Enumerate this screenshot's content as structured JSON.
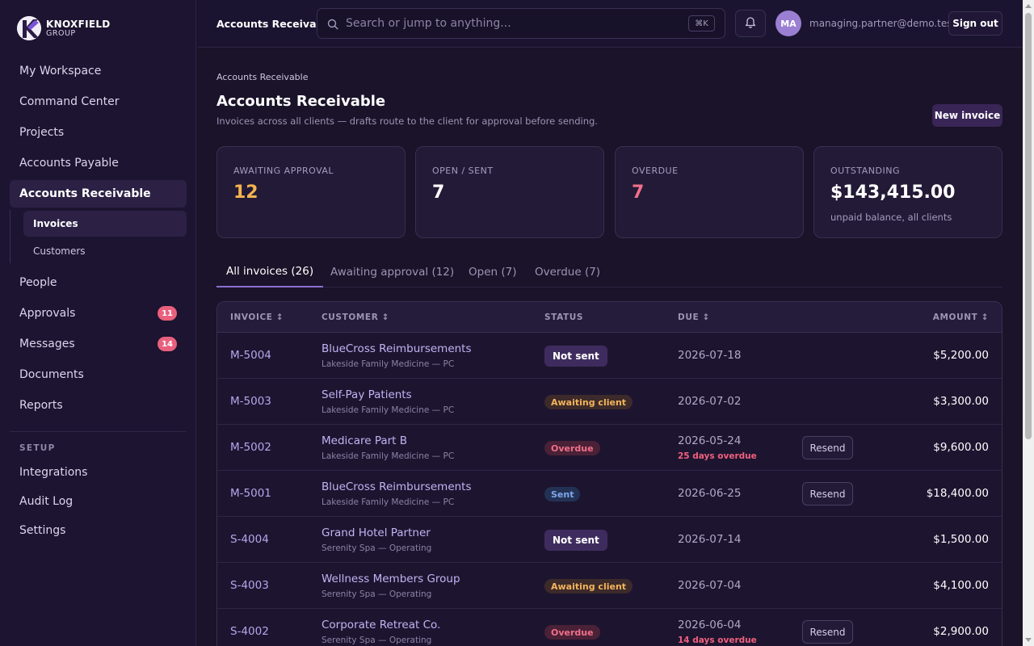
{
  "brand": {
    "name": "KNOXFIELD",
    "sub": "GROUP"
  },
  "sidebar": {
    "items": [
      {
        "label": "My Workspace"
      },
      {
        "label": "Command Center"
      },
      {
        "label": "Projects"
      },
      {
        "label": "Accounts Payable"
      },
      {
        "label": "Accounts Receivable"
      },
      {
        "label": "People"
      },
      {
        "label": "Approvals",
        "badge": "11"
      },
      {
        "label": "Messages",
        "badge": "14"
      },
      {
        "label": "Documents"
      },
      {
        "label": "Reports"
      }
    ],
    "subitems": [
      {
        "label": "Invoices"
      },
      {
        "label": "Customers"
      }
    ],
    "setup_title": "SETUP",
    "setup_items": [
      {
        "label": "Integrations"
      },
      {
        "label": "Audit Log"
      },
      {
        "label": "Settings"
      }
    ]
  },
  "topbar": {
    "title": "Accounts Receivable",
    "search_placeholder": "Search or jump to anything...",
    "shortcut": "⌘K",
    "avatar_initials": "MA",
    "user_email": "managing.partner@demo.test",
    "signout_label": "Sign out"
  },
  "page": {
    "breadcrumb": "Accounts Receivable",
    "title": "Accounts Receivable",
    "subtitle": "Invoices across all clients — drafts route to the client for approval before sending.",
    "new_invoice_label": "New invoice"
  },
  "stats": [
    {
      "label": "AWAITING APPROVAL",
      "value": "12",
      "color": "#f4b350"
    },
    {
      "label": "OPEN / SENT",
      "value": "7",
      "color": "#ffffff"
    },
    {
      "label": "OVERDUE",
      "value": "7",
      "color": "#f06f8a"
    },
    {
      "label": "OUTSTANDING",
      "value": "$143,415.00",
      "color": "#ffffff",
      "sub": "unpaid balance, all clients"
    }
  ],
  "tabs": [
    {
      "label": "All invoices (26)"
    },
    {
      "label": "Awaiting approval (12)"
    },
    {
      "label": "Open (7)"
    },
    {
      "label": "Overdue (7)"
    }
  ],
  "table": {
    "headers": {
      "invoice": "INVOICE ↕",
      "customer": "CUSTOMER ↕",
      "status": "STATUS",
      "due": "DUE ↕",
      "amount": "AMOUNT ↕"
    },
    "rows": [
      {
        "invoice": "M-5004",
        "customer": "BlueCross Reimbursements",
        "client": "Lakeside Family Medicine — PC",
        "status": "Not sent",
        "due": "2026-07-18",
        "amount": "$5,200.00"
      },
      {
        "invoice": "M-5003",
        "customer": "Self-Pay Patients",
        "client": "Lakeside Family Medicine — PC",
        "status": "Awaiting client",
        "due": "2026-07-02",
        "amount": "$3,300.00"
      },
      {
        "invoice": "M-5002",
        "customer": "Medicare Part B",
        "client": "Lakeside Family Medicine — PC",
        "status": "Overdue",
        "due": "2026-05-24",
        "overdue_note": "25 days overdue",
        "action": "Resend",
        "amount": "$9,600.00"
      },
      {
        "invoice": "M-5001",
        "customer": "BlueCross Reimbursements",
        "client": "Lakeside Family Medicine — PC",
        "status": "Sent",
        "due": "2026-06-25",
        "action": "Resend",
        "amount": "$18,400.00"
      },
      {
        "invoice": "S-4004",
        "customer": "Grand Hotel Partner",
        "client": "Serenity Spa — Operating",
        "status": "Not sent",
        "due": "2026-07-14",
        "amount": "$1,500.00"
      },
      {
        "invoice": "S-4003",
        "customer": "Wellness Members Group",
        "client": "Serenity Spa — Operating",
        "status": "Awaiting client",
        "due": "2026-07-04",
        "amount": "$4,100.00"
      },
      {
        "invoice": "S-4002",
        "customer": "Corporate Retreat Co.",
        "client": "Serenity Spa — Operating",
        "status": "Overdue",
        "due": "2026-06-04",
        "overdue_note": "14 days overdue",
        "action": "Resend",
        "amount": "$2,900.00"
      }
    ]
  }
}
